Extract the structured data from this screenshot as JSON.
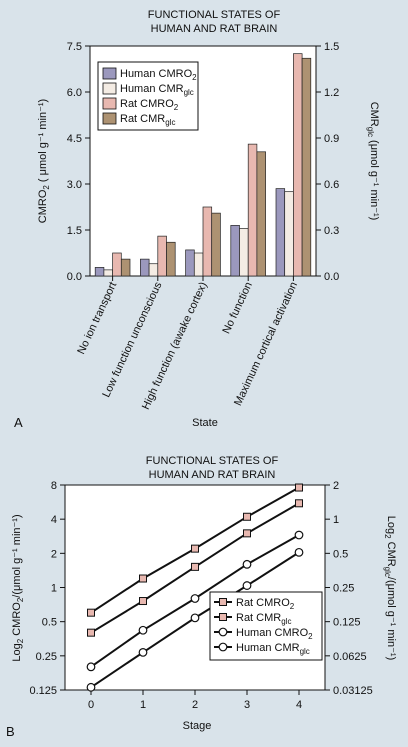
{
  "chart_data": [
    {
      "type": "bar",
      "panel_label": "A",
      "title_lines": [
        "FUNCTIONAL STATES OF",
        "HUMAN AND RAT BRAIN"
      ],
      "xlabel": "State",
      "ylabel": {
        "pre": "CMRO",
        "sub": "2",
        "post": " ( μmol g⁻¹ min⁻¹)"
      },
      "y2label": {
        "pre": "CMR",
        "sub": "glc",
        "post": " (μmol g⁻¹ min⁻¹)"
      },
      "categories": [
        "No ion transport",
        "Low function unconscious",
        "High function (awake cortex)",
        "No function",
        "Maximum cortical activation"
      ],
      "ylim": [
        0,
        7.5
      ],
      "y_ticks": [
        "0.0",
        "1.5",
        "3.0",
        "4.5",
        "6.0",
        "7.5"
      ],
      "y2lim": [
        0,
        1.5
      ],
      "y2_ticks": [
        "0.0",
        "0.3",
        "0.6",
        "0.9",
        "1.2",
        "1.5"
      ],
      "legend_position": "top-left",
      "series": [
        {
          "name": {
            "pre": "Human CMRO",
            "sub": "2"
          },
          "axis": "left",
          "color": "#9b98bd",
          "values": [
            0.28,
            0.55,
            0.85,
            1.65,
            2.85
          ]
        },
        {
          "name": {
            "pre": "Human CMR",
            "sub": "glc"
          },
          "axis": "right",
          "color": "#f4ece4",
          "values": [
            0.04,
            0.08,
            0.15,
            0.31,
            0.55
          ]
        },
        {
          "name": {
            "pre": "Rat CMRO",
            "sub": "2"
          },
          "axis": "left",
          "color": "#e8b8b0",
          "values": [
            0.75,
            1.3,
            2.25,
            4.3,
            7.25
          ]
        },
        {
          "name": {
            "pre": "Rat CMR",
            "sub": "glc"
          },
          "axis": "right",
          "color": "#ad9272",
          "values": [
            0.11,
            0.22,
            0.41,
            0.81,
            1.42
          ]
        }
      ]
    },
    {
      "type": "line",
      "panel_label": "B",
      "title_lines": [
        "FUNCTIONAL STATES OF",
        "HUMAN AND RAT BRAIN"
      ],
      "xlabel": "Stage",
      "x": [
        0,
        1,
        2,
        3,
        4
      ],
      "x_ticks": [
        "0",
        "1",
        "2",
        "3",
        "4"
      ],
      "ylabel": {
        "pre": "Log",
        "sub": "2",
        "post": " CMRO",
        "sub2": "2",
        "post2": "/(μmol g⁻¹ min⁻¹)"
      },
      "y2label": {
        "pre": "Log",
        "sub": "2",
        "post": " CMR",
        "sub2": "glc",
        "post2": "/(μmol g⁻¹ min⁻¹)"
      },
      "yscale": "log2",
      "ylim": [
        0.125,
        8
      ],
      "y_ticks": [
        "0.125",
        "0.25",
        "0.5",
        "1",
        "2",
        "4",
        "8"
      ],
      "y2lim": [
        0.03125,
        2
      ],
      "y2_ticks": [
        "0.03125",
        "0.0625",
        "0.125",
        "0.25",
        "0.5",
        "1",
        "2"
      ],
      "legend_position": "bottom-right",
      "series": [
        {
          "name": {
            "pre": "Rat CMRO",
            "sub": "2"
          },
          "axis": "left",
          "marker": "square",
          "values": [
            0.6,
            1.2,
            2.2,
            4.2,
            7.6
          ]
        },
        {
          "name": {
            "pre": "Rat CMR",
            "sub": "glc"
          },
          "axis": "right",
          "marker": "square",
          "values": [
            0.1,
            0.19,
            0.38,
            0.75,
            1.38
          ]
        },
        {
          "name": {
            "pre": "Human CMRO",
            "sub": "2"
          },
          "axis": "left",
          "marker": "circle",
          "values": [
            0.2,
            0.42,
            0.8,
            1.6,
            2.9
          ]
        },
        {
          "name": {
            "pre": "Human CMR",
            "sub": "glc"
          },
          "axis": "right",
          "marker": "circle",
          "values": [
            0.033,
            0.067,
            0.135,
            0.26,
            0.51
          ]
        }
      ]
    }
  ]
}
